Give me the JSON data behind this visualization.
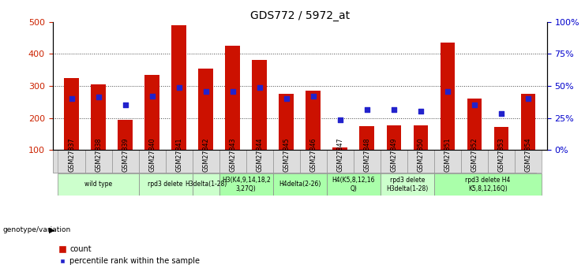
{
  "title": "GDS772 / 5972_at",
  "samples": [
    "GSM27837",
    "GSM27838",
    "GSM27839",
    "GSM27840",
    "GSM27841",
    "GSM27842",
    "GSM27843",
    "GSM27844",
    "GSM27845",
    "GSM27846",
    "GSM27847",
    "GSM27848",
    "GSM27849",
    "GSM27850",
    "GSM27851",
    "GSM27852",
    "GSM27853",
    "GSM27854"
  ],
  "counts": [
    325,
    305,
    195,
    335,
    490,
    355,
    425,
    380,
    275,
    285,
    108,
    175,
    178,
    178,
    435,
    260,
    172,
    275
  ],
  "pct_values": [
    260,
    265,
    240,
    268,
    295,
    282,
    282,
    295,
    260,
    268,
    194,
    225,
    225,
    222,
    282,
    240,
    215,
    260
  ],
  "ylim_left": [
    100,
    500
  ],
  "ylim_right": [
    0,
    100
  ],
  "yticks_left": [
    100,
    200,
    300,
    400,
    500
  ],
  "yticks_right": [
    0,
    25,
    50,
    75,
    100
  ],
  "bar_color": "#cc1100",
  "dot_color": "#2222cc",
  "group_row": [
    {
      "label": "wild type",
      "cols": [
        0,
        1,
        2
      ],
      "color": "#ccffcc"
    },
    {
      "label": "rpd3 delete",
      "cols": [
        3,
        4
      ],
      "color": "#ccffcc"
    },
    {
      "label": "H3delta(1-28)",
      "cols": [
        5
      ],
      "color": "#ccffcc"
    },
    {
      "label": "H3(K4,9,14,18,2\n3,27Q)",
      "cols": [
        6,
        7
      ],
      "color": "#aaffaa"
    },
    {
      "label": "H4delta(2-26)",
      "cols": [
        8,
        9
      ],
      "color": "#aaffaa"
    },
    {
      "label": "H4(K5,8,12,16\nQ)",
      "cols": [
        10,
        11
      ],
      "color": "#aaffaa"
    },
    {
      "label": "rpd3 delete\nH3delta(1-28)",
      "cols": [
        12,
        13
      ],
      "color": "#ccffcc"
    },
    {
      "label": "rpd3 delete H4\nK5,8,12,16Q)",
      "cols": [
        14,
        15,
        16,
        17
      ],
      "color": "#aaffaa"
    }
  ],
  "legend_labels": [
    "count",
    "percentile rank within the sample"
  ],
  "legend_colors": [
    "#cc1100",
    "#2222cc"
  ],
  "bg_color": "#ffffff",
  "grid_color": "#444444",
  "tick_label_color_left": "#cc2200",
  "tick_label_color_right": "#0000cc",
  "xtick_bg": "#dddddd"
}
